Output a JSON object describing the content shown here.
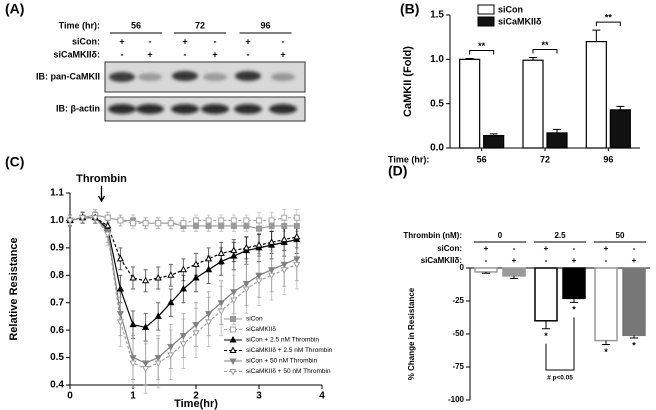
{
  "blot": {
    "panel_label": "(A)",
    "time_label": "Time (hr):",
    "times": [
      "56",
      "72",
      "96"
    ],
    "rows": [
      {
        "label": "siCon:",
        "signs": [
          "+",
          "-",
          "+",
          "-",
          "+",
          "-"
        ]
      },
      {
        "label": "siCaMKIIδ:",
        "signs": [
          "-",
          "+",
          "-",
          "+",
          "-",
          "+"
        ]
      }
    ],
    "blots": [
      "IB: pan-CaMKII",
      "IB: β-actin"
    ]
  },
  "chart_data": [
    {
      "type": "bar",
      "panel_label": "(B)",
      "ylabel": "CaMKII (Fold)",
      "x_label": "Time (hr):",
      "categories": [
        "56",
        "72",
        "96"
      ],
      "series": [
        {
          "name": "siCon",
          "color": "#ffffff",
          "values": [
            1.0,
            0.99,
            1.2
          ],
          "errors": [
            0.01,
            0.03,
            0.13
          ]
        },
        {
          "name": "siCaMKIIδ",
          "color": "#111111",
          "values": [
            0.14,
            0.17,
            0.43
          ],
          "errors": [
            0.02,
            0.04,
            0.04
          ]
        }
      ],
      "ylim": [
        0,
        1.5
      ],
      "yticks": [
        {
          "value": 0,
          "label": "0.0"
        },
        {
          "value": 0.5,
          "label": "0.5"
        },
        {
          "value": 1,
          "label": "1.0"
        },
        {
          "value": 1.5,
          "label": "1.5"
        }
      ],
      "annotations": [
        "**",
        "**",
        "**"
      ]
    },
    {
      "type": "line",
      "panel_label": "(C)",
      "xlabel": "Time(hr)",
      "ylabel": "Relative Resistance",
      "annotation": {
        "text": "Thrombin",
        "x": 0.5
      },
      "x": [
        0,
        0.2,
        0.4,
        0.6,
        0.8,
        1.0,
        1.2,
        1.4,
        1.6,
        1.8,
        2.0,
        2.2,
        2.4,
        2.6,
        2.8,
        3.0,
        3.2,
        3.4,
        3.6
      ],
      "series": [
        {
          "name": "siCon",
          "color": "#999999",
          "marker": "square",
          "filled": true,
          "dashed": false,
          "values": [
            1.0,
            1.01,
            1.02,
            1.01,
            1.0,
            1.0,
            0.99,
            0.99,
            0.99,
            0.98,
            0.98,
            0.98,
            0.98,
            0.98,
            0.98,
            0.97,
            0.98,
            0.98,
            0.98
          ],
          "errors": [
            0.02,
            0.02,
            0.02,
            0.02,
            0.02,
            0.02,
            0.02,
            0.02,
            0.02,
            0.02,
            0.02,
            0.02,
            0.02,
            0.02,
            0.02,
            0.02,
            0.02,
            0.02,
            0.02
          ]
        },
        {
          "name": "siCaMKIIδ",
          "color": "#aaaaaa",
          "marker": "square",
          "filled": false,
          "dashed": true,
          "values": [
            1.0,
            1.01,
            1.02,
            1.01,
            1.0,
            0.99,
            0.99,
            0.99,
            0.99,
            0.99,
            1.0,
            1.0,
            1.0,
            1.0,
            1.0,
            1.0,
            1.0,
            1.01,
            1.01
          ],
          "errors": [
            0.02,
            0.02,
            0.02,
            0.02,
            0.02,
            0.02,
            0.02,
            0.02,
            0.02,
            0.02,
            0.02,
            0.02,
            0.02,
            0.02,
            0.02,
            0.03,
            0.03,
            0.03,
            0.03
          ]
        },
        {
          "name": "siCon + 2.5 nM Thrombin",
          "color": "#000000",
          "marker": "triangle-up",
          "filled": true,
          "dashed": false,
          "values": [
            1.0,
            1.01,
            1.01,
            0.97,
            0.75,
            0.62,
            0.61,
            0.65,
            0.7,
            0.75,
            0.79,
            0.82,
            0.85,
            0.87,
            0.89,
            0.9,
            0.91,
            0.92,
            0.93
          ],
          "errors": [
            0.02,
            0.02,
            0.02,
            0.03,
            0.05,
            0.05,
            0.05,
            0.05,
            0.05,
            0.05,
            0.05,
            0.05,
            0.05,
            0.05,
            0.05,
            0.05,
            0.05,
            0.05,
            0.05
          ]
        },
        {
          "name": "siCaMKIIδ + 2.5 nM Thrombin",
          "color": "#000000",
          "marker": "triangle-up",
          "filled": false,
          "dashed": true,
          "values": [
            1.0,
            1.01,
            1.01,
            0.98,
            0.86,
            0.79,
            0.78,
            0.79,
            0.8,
            0.82,
            0.84,
            0.86,
            0.88,
            0.89,
            0.9,
            0.91,
            0.92,
            0.93,
            0.94
          ],
          "errors": [
            0.02,
            0.02,
            0.02,
            0.03,
            0.04,
            0.04,
            0.04,
            0.04,
            0.04,
            0.04,
            0.04,
            0.04,
            0.04,
            0.04,
            0.04,
            0.04,
            0.04,
            0.04,
            0.04
          ]
        },
        {
          "name": "siCon + 50 nM Thrombin",
          "color": "#808080",
          "marker": "triangle-down",
          "filled": true,
          "dashed": false,
          "values": [
            1.0,
            1.01,
            1.01,
            0.96,
            0.66,
            0.5,
            0.48,
            0.5,
            0.54,
            0.58,
            0.62,
            0.66,
            0.7,
            0.74,
            0.77,
            0.8,
            0.82,
            0.84,
            0.86
          ],
          "errors": [
            0.02,
            0.02,
            0.02,
            0.04,
            0.08,
            0.08,
            0.08,
            0.08,
            0.08,
            0.08,
            0.08,
            0.08,
            0.08,
            0.08,
            0.08,
            0.08,
            0.08,
            0.08,
            0.08
          ]
        },
        {
          "name": "siCaMKIIδ + 50 nM Thrombin",
          "color": "#a0a0a0",
          "marker": "triangle-down",
          "filled": false,
          "dashed": true,
          "values": [
            1.0,
            1.01,
            1.01,
            0.95,
            0.63,
            0.48,
            0.46,
            0.48,
            0.51,
            0.55,
            0.59,
            0.63,
            0.67,
            0.71,
            0.75,
            0.78,
            0.8,
            0.82,
            0.84
          ],
          "errors": [
            0.02,
            0.02,
            0.02,
            0.04,
            0.09,
            0.09,
            0.09,
            0.09,
            0.09,
            0.09,
            0.09,
            0.09,
            0.09,
            0.09,
            0.09,
            0.09,
            0.09,
            0.09,
            0.09
          ]
        }
      ],
      "xlim": [
        0,
        4
      ],
      "xticks": [
        0,
        1,
        2,
        3,
        4
      ],
      "ylim": [
        0.4,
        1.1
      ],
      "yticks": [
        0.4,
        0.5,
        0.6,
        0.7,
        0.8,
        0.9,
        {
          "value": 1,
          "label": "1.0"
        },
        1.1
      ],
      "legend": "lower right"
    },
    {
      "type": "bar",
      "panel_label": "(D)",
      "ylabel": "% Change in Resistance",
      "conditions": [
        {
          "label": "Thrombin (nM):",
          "groups": [
            "0",
            "2.5",
            "50"
          ]
        },
        {
          "label": "siCon:",
          "signs": [
            "+",
            "-",
            "+",
            "-",
            "+",
            "-"
          ]
        },
        {
          "label": "siCaMKIIδ:",
          "signs": [
            "-",
            "+",
            "-",
            "+",
            "-",
            "+"
          ]
        }
      ],
      "values": [
        -3,
        -6,
        -40,
        -23,
        -55,
        -51
      ],
      "errors": [
        1,
        2,
        6,
        3,
        3,
        2
      ],
      "colors": [
        "#ffffff",
        "#999999",
        "#ffffff",
        "#000000",
        "#ffffff",
        "#777777"
      ],
      "edge_colors": [
        "#999999",
        "#999999",
        "#000000",
        "#000000",
        "#999999",
        "#777777"
      ],
      "significance": [
        null,
        null,
        "*",
        "*",
        "*",
        "*"
      ],
      "comparison": "# p<0.05",
      "ylim": [
        -100,
        0
      ],
      "yticks": [
        -100,
        -75,
        -50,
        -25,
        0
      ]
    }
  ]
}
